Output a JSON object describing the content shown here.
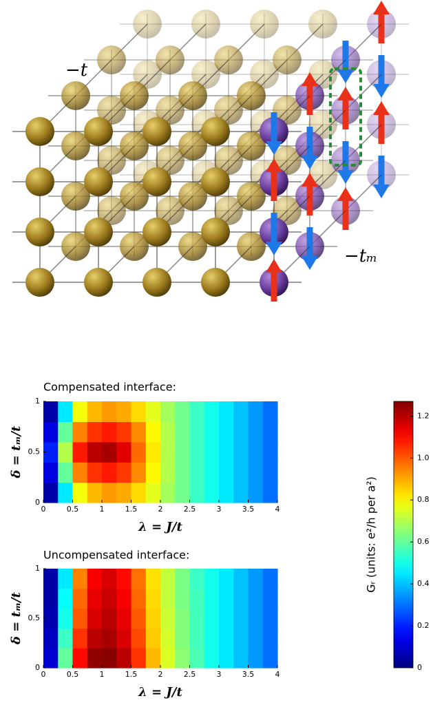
{
  "lattice": {
    "hopping_label": "−t",
    "magnetic_hopping_label": "−tₘ"
  },
  "chart_data": [
    {
      "type": "heatmap",
      "title": "Compensated interface:",
      "xlabel": "λ = J/t",
      "ylabel": "δ = tₘ/t",
      "x": [
        0.125,
        0.375,
        0.625,
        0.875,
        1.125,
        1.375,
        1.625,
        1.875,
        2.125,
        2.375,
        2.625,
        2.875,
        3.125,
        3.375,
        3.625,
        3.875
      ],
      "y": [
        0.1,
        0.3,
        0.5,
        0.7,
        0.9
      ],
      "z": [
        [
          0.05,
          0.45,
          0.78,
          0.88,
          0.92,
          0.9,
          0.84,
          0.76,
          0.68,
          0.62,
          0.55,
          0.5,
          0.45,
          0.4,
          0.35,
          0.3
        ],
        [
          0.12,
          0.6,
          0.95,
          1.05,
          1.08,
          1.04,
          0.94,
          0.8,
          0.7,
          0.62,
          0.55,
          0.5,
          0.45,
          0.4,
          0.35,
          0.3
        ],
        [
          0.2,
          0.7,
          1.08,
          1.2,
          1.22,
          1.15,
          0.98,
          0.82,
          0.7,
          0.62,
          0.55,
          0.5,
          0.45,
          0.4,
          0.35,
          0.3
        ],
        [
          0.12,
          0.6,
          0.95,
          1.05,
          1.08,
          1.04,
          0.94,
          0.8,
          0.7,
          0.62,
          0.55,
          0.5,
          0.45,
          0.4,
          0.35,
          0.3
        ],
        [
          0.05,
          0.45,
          0.78,
          0.88,
          0.92,
          0.9,
          0.84,
          0.76,
          0.68,
          0.62,
          0.55,
          0.5,
          0.45,
          0.4,
          0.35,
          0.3
        ]
      ],
      "xlim": [
        0,
        4
      ],
      "ylim": [
        0,
        1
      ],
      "xticks": [
        0,
        0.5,
        1,
        1.5,
        2,
        2.5,
        3,
        3.5,
        4
      ],
      "yticks": [
        0,
        0.5,
        1
      ]
    },
    {
      "type": "heatmap",
      "title": "Uncompensated interface:",
      "xlabel": "λ = J/t",
      "ylabel": "δ = tₘ/t",
      "x": [
        0.125,
        0.375,
        0.625,
        0.875,
        1.125,
        1.375,
        1.625,
        1.875,
        2.125,
        2.375,
        2.625,
        2.875,
        3.125,
        3.375,
        3.625,
        3.875
      ],
      "y": [
        0.1,
        0.3,
        0.5,
        0.7,
        0.9
      ],
      "z": [
        [
          0.1,
          0.6,
          1.1,
          1.25,
          1.26,
          1.2,
          1.05,
          0.88,
          0.75,
          0.65,
          0.57,
          0.5,
          0.45,
          0.4,
          0.35,
          0.3
        ],
        [
          0.08,
          0.55,
          1.05,
          1.2,
          1.22,
          1.16,
          1.02,
          0.86,
          0.74,
          0.64,
          0.56,
          0.5,
          0.45,
          0.4,
          0.35,
          0.3
        ],
        [
          0.06,
          0.5,
          1.0,
          1.16,
          1.2,
          1.14,
          1.0,
          0.85,
          0.73,
          0.64,
          0.56,
          0.5,
          0.45,
          0.4,
          0.35,
          0.3
        ],
        [
          0.05,
          0.48,
          0.98,
          1.14,
          1.18,
          1.12,
          0.98,
          0.84,
          0.72,
          0.63,
          0.56,
          0.5,
          0.45,
          0.4,
          0.35,
          0.3
        ],
        [
          0.05,
          0.45,
          0.95,
          1.12,
          1.16,
          1.1,
          0.97,
          0.83,
          0.72,
          0.63,
          0.55,
          0.5,
          0.45,
          0.4,
          0.35,
          0.3
        ]
      ],
      "xlim": [
        0,
        4
      ],
      "ylim": [
        0,
        1
      ],
      "xticks": [
        0,
        0.5,
        1,
        1.5,
        2,
        2.5,
        3,
        3.5,
        4
      ],
      "yticks": [
        0,
        0.5,
        1
      ]
    }
  ],
  "colorbar": {
    "label": "Gᵣ (units: e²/h per a²)",
    "colormap": "jet",
    "zlim": [
      0,
      1.27
    ],
    "ticks": [
      0,
      0.2,
      0.4,
      0.6,
      0.8,
      {
        "value": 1,
        "label": "1.0"
      },
      1.2
    ]
  }
}
